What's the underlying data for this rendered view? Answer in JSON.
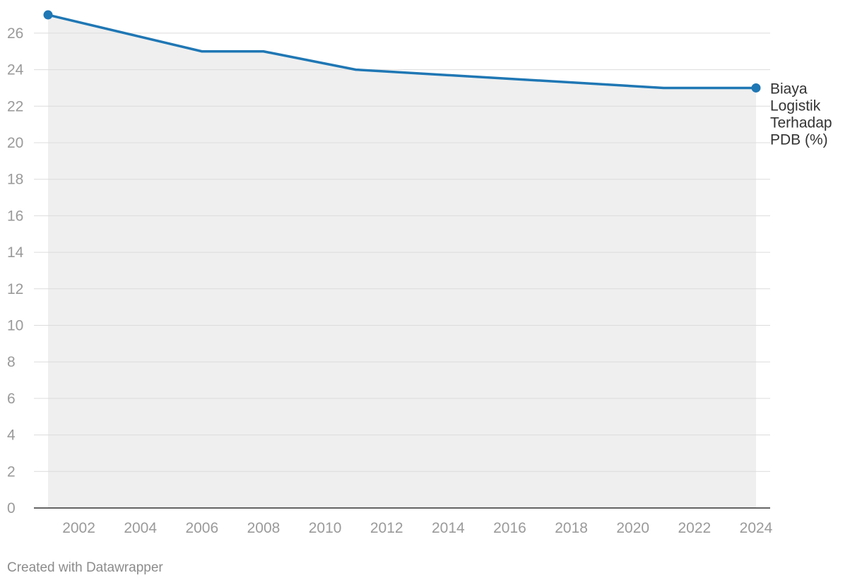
{
  "chart_data": {
    "type": "area",
    "title": "",
    "xlabel": "",
    "ylabel": "",
    "x_ticks": [
      "2002",
      "2004",
      "2006",
      "2008",
      "2010",
      "2012",
      "2014",
      "2016",
      "2018",
      "2020",
      "2022",
      "2024"
    ],
    "y_ticks": [
      "0",
      "2",
      "4",
      "6",
      "8",
      "10",
      "12",
      "14",
      "16",
      "18",
      "20",
      "22",
      "24",
      "26"
    ],
    "xlim": [
      2001,
      2024
    ],
    "ylim": [
      0,
      26
    ],
    "grid": true,
    "legend": "none",
    "series": [
      {
        "name": "Biaya Logistik Terhadap PDB (%)",
        "label_lines": [
          "Biaya",
          "Logistik",
          "Terhadap",
          "PDB (%)"
        ],
        "color": "#1f77b4",
        "area_color": "#efefef",
        "points": [
          {
            "x": 2001,
            "y": 27
          },
          {
            "x": 2006,
            "y": 25
          },
          {
            "x": 2008,
            "y": 25
          },
          {
            "x": 2011,
            "y": 24
          },
          {
            "x": 2021,
            "y": 23
          },
          {
            "x": 2024,
            "y": 23
          }
        ]
      }
    ]
  },
  "footer": {
    "credit": "Created with Datawrapper"
  }
}
